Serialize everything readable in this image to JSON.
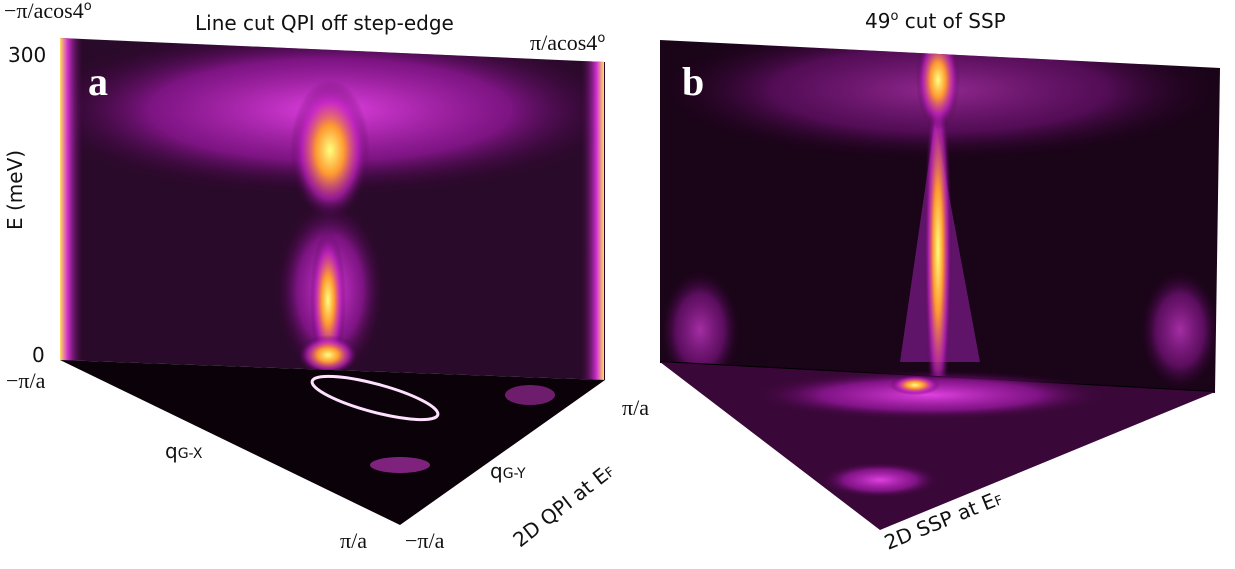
{
  "panel_a": {
    "label": "a",
    "title": "Line cut QPI off step-edge",
    "top_left_label": {
      "main": "−π/acos4",
      "sup": "o"
    },
    "top_right_label": {
      "main": "π/acos4",
      "sup": "o"
    },
    "y_axis_label": "E (meV)",
    "y_top": "300",
    "y_bottom": "0",
    "floor_left_top": "−π/a",
    "floor_left_axis": {
      "main": "q",
      "sub": "G-X"
    },
    "floor_left_bottom": "π/a",
    "floor_right_bottom": "−π/a",
    "floor_right_axis": {
      "main": "q",
      "sub": "G-Y"
    },
    "floor_right_top": "π/a",
    "floor_caption": {
      "main": "2D QPI at E",
      "sub": "F"
    }
  },
  "panel_b": {
    "label": "b",
    "title": {
      "main": "49",
      "sup": "o",
      "rest": " cut of SSP"
    },
    "floor_caption": {
      "main": "2D SSP at E",
      "sub": "F"
    }
  }
}
